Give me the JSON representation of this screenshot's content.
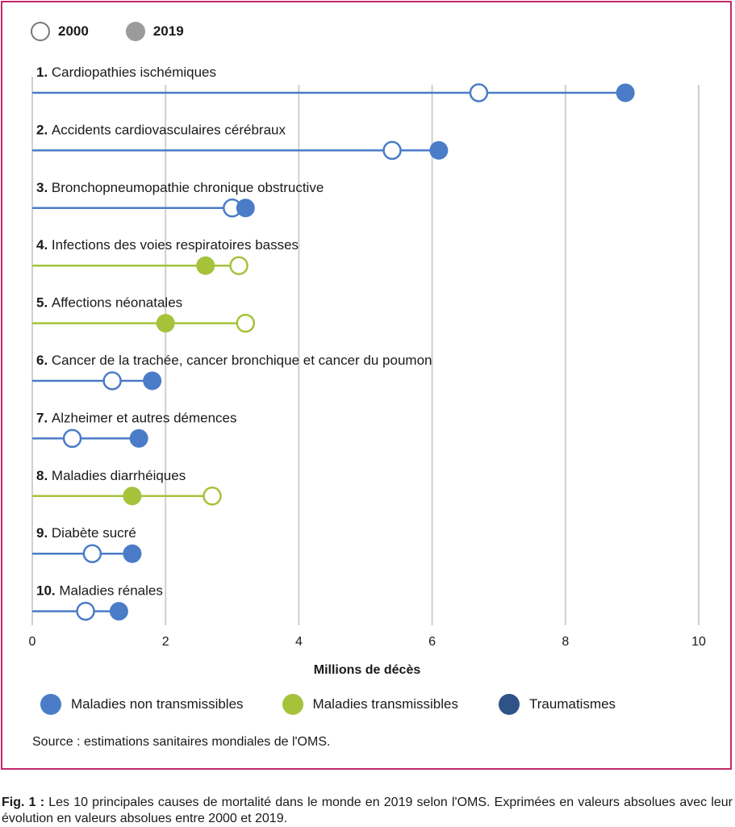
{
  "legend_years": [
    {
      "label": "2000",
      "style": "open"
    },
    {
      "label": "2019",
      "style": "filled"
    }
  ],
  "categories_legend": [
    {
      "label": "Maladies non transmissibles",
      "color": "#4a7cc7"
    },
    {
      "label": "Maladies transmissibles",
      "color": "#a5c23a"
    },
    {
      "label": "Traumatismes",
      "color": "#2f5386"
    }
  ],
  "source": "Source : estimations sanitaires mondiales de l'OMS.",
  "caption": {
    "label": "Fig. 1 :",
    "text": "Les 10 principales causes de mortalité dans le monde en 2019 selon l'OMS. Exprimées en valeurs absolues avec leur évolution en valeurs absolues entre 2000 et 2019."
  },
  "chart_data": {
    "type": "dumbbell",
    "xlabel": "Millions de décès",
    "xlim": [
      0,
      10
    ],
    "xticks": [
      0,
      2,
      4,
      6,
      8,
      10
    ],
    "series_names": [
      "2000",
      "2019"
    ],
    "rows": [
      {
        "rank": "1.",
        "label": "Cardiopathies ischémiques",
        "v2000": 6.7,
        "v2019": 8.9,
        "group": "Maladies non transmissibles"
      },
      {
        "rank": "2.",
        "label": "Accidents cardiovasculaires cérébraux",
        "v2000": 5.4,
        "v2019": 6.1,
        "group": "Maladies non transmissibles"
      },
      {
        "rank": "3.",
        "label": "Bronchopneumopathie chronique obstructive",
        "v2000": 3.0,
        "v2019": 3.2,
        "group": "Maladies non transmissibles"
      },
      {
        "rank": "4.",
        "label": "Infections des voies respiratoires basses",
        "v2000": 3.1,
        "v2019": 2.6,
        "group": "Maladies transmissibles"
      },
      {
        "rank": "5.",
        "label": "Affections néonatales",
        "v2000": 3.2,
        "v2019": 2.0,
        "group": "Maladies transmissibles"
      },
      {
        "rank": "6.",
        "label": "Cancer de la trachée, cancer bronchique et cancer du poumon",
        "v2000": 1.2,
        "v2019": 1.8,
        "group": "Maladies non transmissibles"
      },
      {
        "rank": "7.",
        "label": "Alzheimer et autres démences",
        "v2000": 0.6,
        "v2019": 1.6,
        "group": "Maladies non transmissibles"
      },
      {
        "rank": "8.",
        "label": "Maladies diarrhéiques",
        "v2000": 2.7,
        "v2019": 1.5,
        "group": "Maladies transmissibles"
      },
      {
        "rank": "9.",
        "label": "Diabète sucré",
        "v2000": 0.9,
        "v2019": 1.5,
        "group": "Maladies non transmissibles"
      },
      {
        "rank": "10.",
        "label": "Maladies rénales",
        "v2000": 0.8,
        "v2019": 1.3,
        "group": "Maladies non transmissibles"
      }
    ]
  }
}
